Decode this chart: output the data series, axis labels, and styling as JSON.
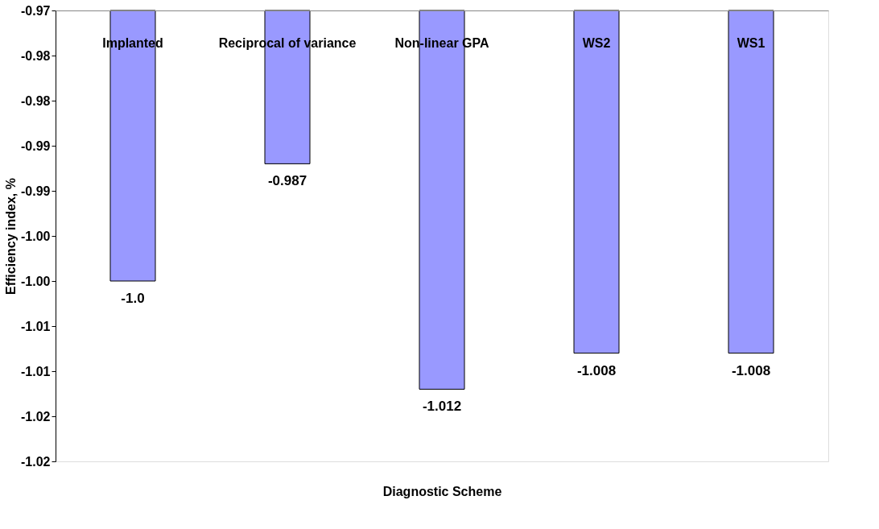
{
  "chart_data": {
    "type": "bar",
    "xlabel": "Diagnostic Scheme",
    "ylabel": "Efficiency index, %",
    "categories": [
      "Implanted",
      "Reciprocal of variance",
      "Non-linear GPA",
      "WS2",
      "WS1"
    ],
    "values": [
      -1.0,
      -0.987,
      -1.012,
      -1.008,
      -1.008
    ],
    "value_labels": [
      "-1.0",
      "-0.987",
      "-1.012",
      "-1.008",
      "-1.008"
    ],
    "color": "#9999ff",
    "ylim": [
      -1.02,
      -0.97
    ],
    "yticks": [
      {
        "value": -0.97,
        "label": "-0.97"
      },
      {
        "value": -0.975,
        "label": "-0.98"
      },
      {
        "value": -0.98,
        "label": "-0.98"
      },
      {
        "value": -0.985,
        "label": "-0.99"
      },
      {
        "value": -0.99,
        "label": "-0.99"
      },
      {
        "value": -0.995,
        "label": "-1.00"
      },
      {
        "value": -1.0,
        "label": "-1.00"
      },
      {
        "value": -1.005,
        "label": "-1.01"
      },
      {
        "value": -1.01,
        "label": "-1.01"
      },
      {
        "value": -1.015,
        "label": "-1.02"
      },
      {
        "value": -1.02,
        "label": "-1.02"
      }
    ],
    "grid": false
  }
}
